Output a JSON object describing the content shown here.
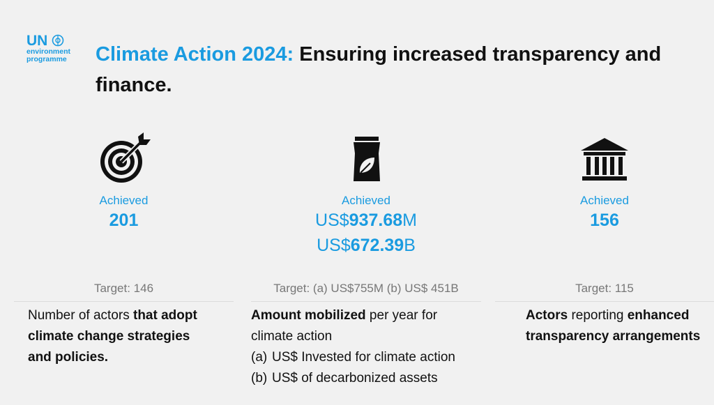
{
  "logo": {
    "line1": "UN",
    "line2": "environment",
    "line3": "programme"
  },
  "title": {
    "highlight": "Climate Action 2024:",
    "rest": "Ensuring increased transparency and finance."
  },
  "columns": [
    {
      "status": "Achieved",
      "values": [
        [
          {
            "text": "201",
            "bold": true
          }
        ]
      ],
      "target": "Target: 146",
      "description": [
        {
          "text": "Number of actors ",
          "bold": false
        },
        {
          "text": "that adopt climate change strategies and policies.",
          "bold": true
        }
      ],
      "items": []
    },
    {
      "status": "Achieved",
      "values": [
        [
          {
            "text": "US$",
            "bold": false
          },
          {
            "text": "937.68",
            "bold": true
          },
          {
            "text": "M",
            "bold": false
          }
        ],
        [
          {
            "text": "US$",
            "bold": false
          },
          {
            "text": "672.39",
            "bold": true
          },
          {
            "text": "B",
            "bold": false
          }
        ]
      ],
      "target": "Target: (a) US$755M (b) US$ 451B",
      "description": [
        {
          "text": "Amount mobilized",
          "bold": true
        },
        {
          "text": " per year for climate action",
          "bold": false
        }
      ],
      "items": [
        {
          "marker": "(a)",
          "text": "US$ Invested for climate action"
        },
        {
          "marker": "(b)",
          "text": "US$ of decarbonized assets"
        }
      ]
    },
    {
      "status": "Achieved",
      "values": [
        [
          {
            "text": "156",
            "bold": true
          }
        ]
      ],
      "target": "Target: 115",
      "description": [
        {
          "text": "Actors",
          "bold": true
        },
        {
          "text": " reporting ",
          "bold": false
        },
        {
          "text": "enhanced transparency arrangements",
          "bold": true
        }
      ],
      "items": []
    }
  ]
}
